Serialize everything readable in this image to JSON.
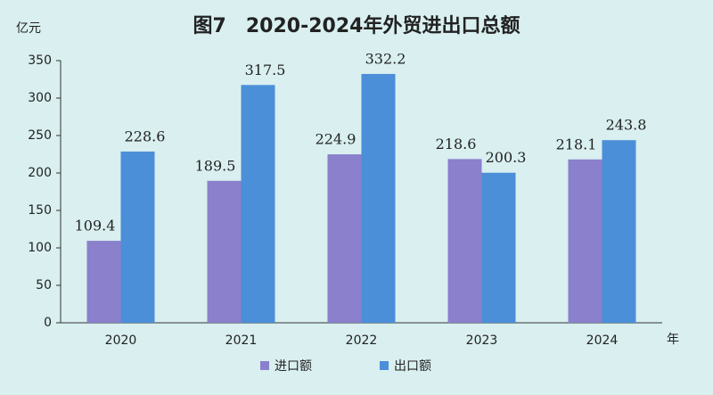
{
  "chart_data": {
    "type": "bar",
    "title": "图7　2020-2024年外贸进出口总额",
    "y_axis_label": "亿元",
    "x_axis_label": "年",
    "categories": [
      "2020",
      "2021",
      "2022",
      "2023",
      "2024"
    ],
    "series": [
      {
        "name": "进口额",
        "color": "#8a80cc",
        "label_color": "#3b3b8e",
        "values": [
          109.4,
          189.5,
          224.9,
          218.6,
          218.1
        ]
      },
      {
        "name": "出口额",
        "color": "#4b8fd8",
        "label_color": "#1565c0",
        "values": [
          228.6,
          317.5,
          332.2,
          200.3,
          243.8
        ]
      }
    ],
    "ylim": [
      0,
      350
    ],
    "yticks": [
      0,
      50,
      100,
      150,
      200,
      250,
      300,
      350
    ],
    "grid": false
  }
}
